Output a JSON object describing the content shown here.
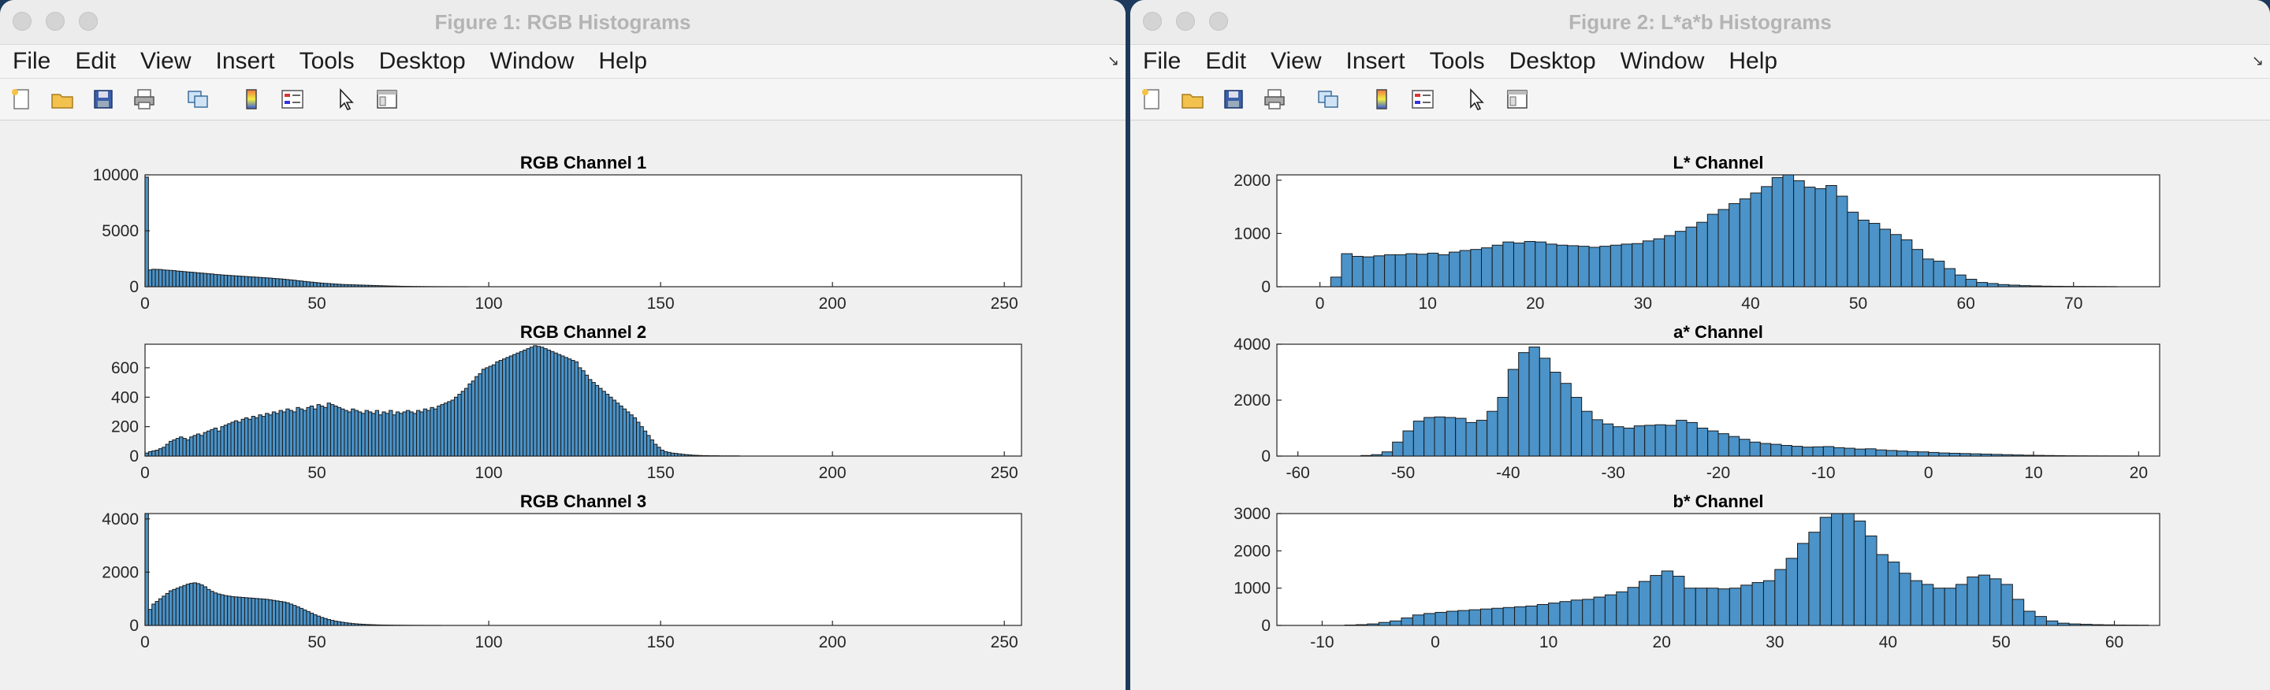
{
  "windows": [
    {
      "title": "Figure 1: RGB Histograms",
      "menu": [
        "File",
        "Edit",
        "View",
        "Insert",
        "Tools",
        "Desktop",
        "Window",
        "Help"
      ],
      "toolbar_icons": [
        "new-figure-icon",
        "open-icon",
        "save-icon",
        "print-icon",
        "link-icon",
        "colorbar-icon",
        "legend-icon",
        "pointer-icon",
        "property-editor-icon"
      ]
    },
    {
      "title": "Figure 2: L*a*b Histograms",
      "menu": [
        "File",
        "Edit",
        "View",
        "Insert",
        "Tools",
        "Desktop",
        "Window",
        "Help"
      ],
      "toolbar_icons": [
        "new-figure-icon",
        "open-icon",
        "save-icon",
        "print-icon",
        "link-icon",
        "colorbar-icon",
        "legend-icon",
        "pointer-icon",
        "property-editor-icon"
      ]
    }
  ],
  "colors": {
    "bar": "#4b93c8",
    "bar_edge": "#1a1a1a"
  },
  "chart_data": [
    {
      "type": "bar",
      "title": "RGB Channel 1",
      "xlim": [
        0,
        255
      ],
      "ylim": [
        0,
        10000
      ],
      "xticks": [
        0,
        50,
        100,
        150,
        200,
        250
      ],
      "yticks": [
        0,
        5000,
        10000
      ],
      "bin_start": 0,
      "bin_width": 1,
      "values": [
        9800,
        1500,
        1560,
        1550,
        1540,
        1500,
        1480,
        1460,
        1440,
        1400,
        1380,
        1350,
        1320,
        1300,
        1270,
        1240,
        1220,
        1190,
        1160,
        1140,
        1100,
        1080,
        1050,
        1030,
        1010,
        990,
        970,
        950,
        930,
        910,
        890,
        870,
        850,
        830,
        810,
        790,
        770,
        740,
        720,
        700,
        670,
        640,
        610,
        580,
        540,
        510,
        470,
        440,
        410,
        380,
        350,
        320,
        300,
        280,
        260,
        240,
        220,
        200,
        190,
        180,
        170,
        160,
        150,
        140,
        130,
        120,
        110,
        100,
        90,
        80,
        70,
        62,
        55,
        48,
        40,
        35,
        30,
        25,
        20,
        18,
        15,
        12,
        10,
        8,
        6,
        5,
        4,
        3,
        2,
        2,
        1,
        1,
        1,
        1,
        0,
        0,
        0,
        0,
        0,
        0,
        0,
        0,
        0,
        0,
        0,
        0,
        0,
        0,
        0,
        0,
        0,
        0,
        0,
        0,
        0,
        0,
        0,
        0,
        0,
        0,
        0,
        0,
        0,
        0,
        0,
        0,
        0,
        0,
        0,
        0,
        0,
        0,
        0,
        0,
        0,
        0,
        0,
        0,
        0,
        0,
        0,
        0,
        0,
        0,
        0,
        0,
        0,
        0,
        0,
        0,
        0,
        0,
        0,
        0,
        0,
        0,
        0,
        0,
        0,
        0,
        0,
        0,
        0,
        0,
        0,
        0,
        0,
        0,
        0,
        0,
        0,
        0,
        0,
        0,
        0,
        0,
        0,
        0,
        0,
        0,
        0,
        0,
        0,
        0,
        0,
        0,
        0,
        0,
        0,
        0,
        0,
        0,
        0,
        0,
        0,
        0,
        0,
        0,
        0,
        0,
        0,
        0,
        0,
        0,
        0,
        0,
        0,
        0,
        0,
        0,
        0,
        0,
        0,
        0,
        0,
        0,
        0,
        0,
        0,
        0,
        0,
        0,
        0,
        0,
        0,
        0,
        0,
        0,
        0,
        0,
        0,
        0,
        0,
        0,
        0,
        0,
        0,
        0,
        0,
        0,
        0,
        0,
        0,
        0,
        0,
        0,
        0,
        0,
        0,
        0,
        0
      ]
    },
    {
      "type": "bar",
      "title": "RGB Channel 2",
      "xlim": [
        0,
        255
      ],
      "ylim": [
        0,
        760
      ],
      "xticks": [
        0,
        50,
        100,
        150,
        200,
        250
      ],
      "yticks": [
        0,
        200,
        400,
        600
      ],
      "bin_start": 0,
      "bin_width": 1,
      "values": [
        20,
        30,
        35,
        40,
        50,
        60,
        80,
        100,
        110,
        120,
        130,
        120,
        110,
        130,
        140,
        150,
        140,
        160,
        170,
        180,
        190,
        170,
        200,
        210,
        220,
        230,
        240,
        230,
        250,
        260,
        250,
        270,
        260,
        280,
        270,
        290,
        280,
        300,
        290,
        310,
        300,
        320,
        310,
        300,
        330,
        320,
        310,
        330,
        340,
        320,
        350,
        340,
        330,
        360,
        350,
        340,
        330,
        320,
        310,
        300,
        320,
        310,
        300,
        290,
        310,
        300,
        290,
        310,
        280,
        300,
        290,
        310,
        280,
        300,
        290,
        300,
        310,
        300,
        290,
        310,
        300,
        320,
        310,
        330,
        320,
        340,
        350,
        360,
        370,
        380,
        400,
        420,
        440,
        460,
        490,
        510,
        540,
        560,
        590,
        600,
        610,
        620,
        640,
        650,
        660,
        670,
        680,
        690,
        700,
        710,
        720,
        730,
        740,
        750,
        745,
        740,
        730,
        720,
        710,
        700,
        690,
        680,
        670,
        660,
        650,
        640,
        600,
        580,
        550,
        520,
        500,
        480,
        460,
        440,
        420,
        400,
        380,
        360,
        340,
        320,
        300,
        280,
        260,
        230,
        200,
        170,
        140,
        110,
        80,
        60,
        40,
        30,
        25,
        20,
        18,
        15,
        12,
        10,
        8,
        6,
        5,
        4,
        3,
        3,
        2,
        2,
        2,
        1,
        1,
        1,
        1,
        1,
        1,
        0,
        0,
        0,
        0,
        0,
        0,
        0,
        0,
        0,
        0,
        0,
        0,
        0,
        0,
        0,
        0,
        0,
        0,
        0,
        0,
        0,
        0,
        0,
        0,
        0,
        0,
        0,
        0,
        0,
        0,
        0,
        0,
        0,
        0,
        0,
        0,
        0,
        0,
        0,
        0,
        0,
        0,
        0,
        0,
        0,
        0,
        0,
        0,
        0,
        0,
        0,
        0,
        0,
        0,
        0,
        0,
        0,
        0,
        0,
        0,
        0,
        0,
        0,
        0,
        0,
        0,
        0,
        0,
        0,
        0,
        0,
        0,
        0,
        0,
        0,
        0,
        0,
        0,
        0,
        0,
        0,
        0,
        0,
        0,
        0,
        0,
        0,
        0,
        0,
        0,
        0,
        0,
        0,
        0,
        0,
        0,
        0,
        0,
        0,
        0,
        0,
        0,
        0
      ]
    },
    {
      "type": "bar",
      "title": "RGB Channel 3",
      "xlim": [
        0,
        255
      ],
      "ylim": [
        0,
        4200
      ],
      "xticks": [
        0,
        50,
        100,
        150,
        200,
        250
      ],
      "yticks": [
        0,
        2000,
        4000
      ],
      "bin_start": 0,
      "bin_width": 1,
      "values": [
        4200,
        600,
        800,
        900,
        1000,
        1100,
        1200,
        1300,
        1350,
        1400,
        1450,
        1500,
        1550,
        1580,
        1600,
        1570,
        1520,
        1450,
        1350,
        1280,
        1220,
        1180,
        1150,
        1120,
        1100,
        1080,
        1070,
        1060,
        1050,
        1040,
        1030,
        1020,
        1010,
        1000,
        990,
        980,
        960,
        940,
        920,
        900,
        880,
        850,
        800,
        750,
        700,
        640,
        580,
        520,
        460,
        400,
        350,
        300,
        260,
        220,
        190,
        160,
        140,
        120,
        100,
        85,
        70,
        60,
        50,
        42,
        35,
        30,
        25,
        20,
        17,
        14,
        12,
        10,
        8,
        7,
        6,
        5,
        4,
        3,
        3,
        2,
        2,
        1,
        1,
        1,
        1,
        1,
        0,
        0,
        0,
        0,
        0,
        0,
        0,
        0,
        0,
        0,
        0,
        0,
        0,
        0,
        0,
        0,
        0,
        0,
        0,
        0,
        0,
        0,
        0,
        0,
        0,
        0,
        0,
        0,
        0,
        0,
        0,
        0,
        0,
        0,
        0,
        0,
        0,
        0,
        0,
        0,
        0,
        0,
        0,
        0,
        0,
        0,
        0,
        0,
        0,
        0,
        0,
        0,
        0,
        0,
        0,
        0,
        0,
        0,
        0,
        0,
        0,
        0,
        0,
        0,
        0,
        0,
        0,
        0,
        0,
        0,
        0,
        0,
        0,
        0,
        0,
        0,
        0,
        0,
        0,
        0,
        0,
        0,
        0,
        0,
        0,
        0,
        0,
        0,
        0,
        0,
        0,
        0,
        0,
        0,
        0,
        0,
        0,
        0,
        0,
        0,
        0,
        0,
        0,
        0,
        0,
        0,
        0,
        0,
        0,
        0,
        0,
        0,
        0,
        0,
        0,
        0,
        0,
        0,
        0,
        0,
        0,
        0,
        0,
        0,
        0,
        0,
        0,
        0,
        0,
        0,
        0,
        0,
        0,
        0,
        0,
        0,
        0,
        0,
        0,
        0,
        0,
        0,
        0,
        0,
        0,
        0,
        0,
        0,
        0,
        0,
        0,
        0,
        0,
        0,
        0,
        0,
        0,
        0,
        0,
        0,
        0,
        0,
        0,
        0,
        0,
        0,
        0,
        0,
        0,
        0,
        0,
        0,
        0,
        0,
        0,
        0,
        0,
        0,
        0
      ]
    },
    {
      "type": "bar",
      "title": "L* Channel",
      "xlim": [
        -4,
        78
      ],
      "ylim": [
        0,
        2100
      ],
      "xticks": [
        0,
        10,
        20,
        30,
        40,
        50,
        60,
        70
      ],
      "yticks": [
        0,
        1000,
        2000
      ],
      "bin_start": 0,
      "bin_width": 1,
      "values": [
        0,
        180,
        620,
        570,
        560,
        580,
        600,
        600,
        620,
        610,
        630,
        600,
        650,
        680,
        700,
        730,
        780,
        840,
        820,
        850,
        840,
        800,
        780,
        770,
        760,
        740,
        760,
        780,
        800,
        810,
        860,
        900,
        960,
        1040,
        1120,
        1210,
        1360,
        1450,
        1560,
        1650,
        1760,
        1880,
        2050,
        2100,
        1990,
        1870,
        1840,
        1900,
        1700,
        1400,
        1250,
        1190,
        1080,
        980,
        880,
        700,
        520,
        480,
        340,
        220,
        140,
        80,
        60,
        40,
        30,
        20,
        15,
        10,
        8,
        6,
        5,
        4,
        3,
        2
      ]
    },
    {
      "type": "bar",
      "title": "a* Channel",
      "xlim": [
        -62,
        22
      ],
      "ylim": [
        0,
        4000
      ],
      "xticks": [
        -60,
        -50,
        -40,
        -30,
        -20,
        -10,
        0,
        10,
        20
      ],
      "yticks": [
        0,
        2000,
        4000
      ],
      "bin_start": -60,
      "bin_width": 1,
      "values": [
        0,
        0,
        0,
        0,
        0,
        0,
        20,
        50,
        150,
        500,
        900,
        1250,
        1380,
        1400,
        1380,
        1350,
        1200,
        1280,
        1600,
        2100,
        3100,
        3700,
        3900,
        3500,
        3000,
        2600,
        2100,
        1600,
        1300,
        1150,
        1050,
        1000,
        1080,
        1100,
        1120,
        1100,
        1280,
        1200,
        1000,
        900,
        800,
        700,
        600,
        500,
        450,
        420,
        380,
        350,
        320,
        330,
        340,
        300,
        280,
        250,
        260,
        220,
        200,
        180,
        160,
        150,
        130,
        110,
        100,
        90,
        80,
        70,
        60,
        50,
        40,
        30,
        25,
        20,
        15,
        10,
        8,
        6,
        5,
        4,
        3,
        2,
        0
      ]
    },
    {
      "type": "bar",
      "title": "b* Channel",
      "xlim": [
        -14,
        64
      ],
      "ylim": [
        0,
        3000
      ],
      "xticks": [
        -10,
        0,
        10,
        20,
        30,
        40,
        50,
        60
      ],
      "yticks": [
        0,
        1000,
        2000,
        3000
      ],
      "bin_start": -14,
      "bin_width": 1,
      "values": [
        0,
        0,
        0,
        0,
        0,
        0,
        10,
        20,
        40,
        80,
        120,
        200,
        280,
        320,
        350,
        380,
        400,
        420,
        440,
        460,
        480,
        500,
        520,
        560,
        600,
        640,
        680,
        700,
        760,
        820,
        900,
        1020,
        1180,
        1340,
        1460,
        1320,
        1000,
        1000,
        1000,
        980,
        1000,
        1080,
        1150,
        1200,
        1500,
        1800,
        2200,
        2500,
        2900,
        3000,
        3200,
        2800,
        2400,
        1900,
        1700,
        1400,
        1200,
        1100,
        1000,
        1000,
        1100,
        1300,
        1350,
        1250,
        1100,
        700,
        380,
        240,
        120,
        60,
        40,
        30,
        20,
        15,
        10,
        8,
        6
      ]
    }
  ]
}
